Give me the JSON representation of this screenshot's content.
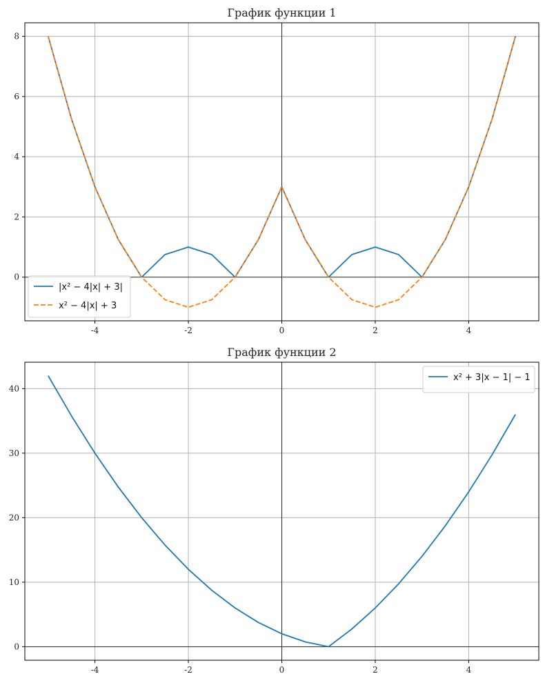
{
  "chart_data": [
    {
      "type": "line",
      "title": "График функции 1",
      "xlabel": "",
      "ylabel": "",
      "xlim": [
        -5.5,
        5.5
      ],
      "ylim": [
        -1.45,
        8.45
      ],
      "xticks": [
        -4,
        -2,
        0,
        2,
        4
      ],
      "yticks": [
        0,
        2,
        4,
        6,
        8
      ],
      "grid": true,
      "legend_position": "lower-left",
      "series": [
        {
          "name": "|x² − 4|x| + 3|",
          "color": "#1f77b4",
          "style": "solid",
          "x": [
            -5,
            -4.5,
            -4,
            -3.5,
            -3,
            -2.5,
            -2,
            -1.5,
            -1,
            -0.5,
            0,
            0.5,
            1,
            1.5,
            2,
            2.5,
            3,
            3.5,
            4,
            4.5,
            5
          ],
          "y": [
            8,
            5.25,
            3,
            1.25,
            0,
            0.75,
            1,
            0.75,
            0,
            1.25,
            3,
            1.25,
            0,
            0.75,
            1,
            0.75,
            0,
            1.25,
            3,
            5.25,
            8
          ]
        },
        {
          "name": "x² − 4|x| + 3",
          "color": "#ff7f0e",
          "style": "dashed",
          "x": [
            -5,
            -4.5,
            -4,
            -3.5,
            -3,
            -2.5,
            -2,
            -1.5,
            -1,
            -0.5,
            0,
            0.5,
            1,
            1.5,
            2,
            2.5,
            3,
            3.5,
            4,
            4.5,
            5
          ],
          "y": [
            8,
            5.25,
            3,
            1.25,
            0,
            -0.75,
            -1,
            -0.75,
            0,
            1.25,
            3,
            1.25,
            0,
            -0.75,
            -1,
            -0.75,
            0,
            1.25,
            3,
            5.25,
            8
          ]
        }
      ]
    },
    {
      "type": "line",
      "title": "График функции 2",
      "xlabel": "",
      "ylabel": "",
      "xlim": [
        -5.5,
        5.5
      ],
      "ylim": [
        -2.1,
        44.1
      ],
      "xticks": [
        -4,
        -2,
        0,
        2,
        4
      ],
      "yticks": [
        0,
        10,
        20,
        30,
        40
      ],
      "grid": true,
      "legend_position": "upper-right",
      "series": [
        {
          "name": "x² + 3|x − 1| − 1",
          "color": "#1f77b4",
          "style": "solid",
          "x": [
            -5,
            -4.5,
            -4,
            -3.5,
            -3,
            -2.5,
            -2,
            -1.5,
            -1,
            -0.5,
            0,
            0.5,
            1,
            1.5,
            2,
            2.5,
            3,
            3.5,
            4,
            4.5,
            5
          ],
          "y": [
            42,
            35.75,
            30,
            24.75,
            20,
            15.75,
            12,
            8.75,
            6,
            3.75,
            2,
            0.75,
            0,
            2.75,
            6,
            9.75,
            14,
            18.75,
            24,
            29.75,
            36
          ]
        }
      ]
    }
  ]
}
